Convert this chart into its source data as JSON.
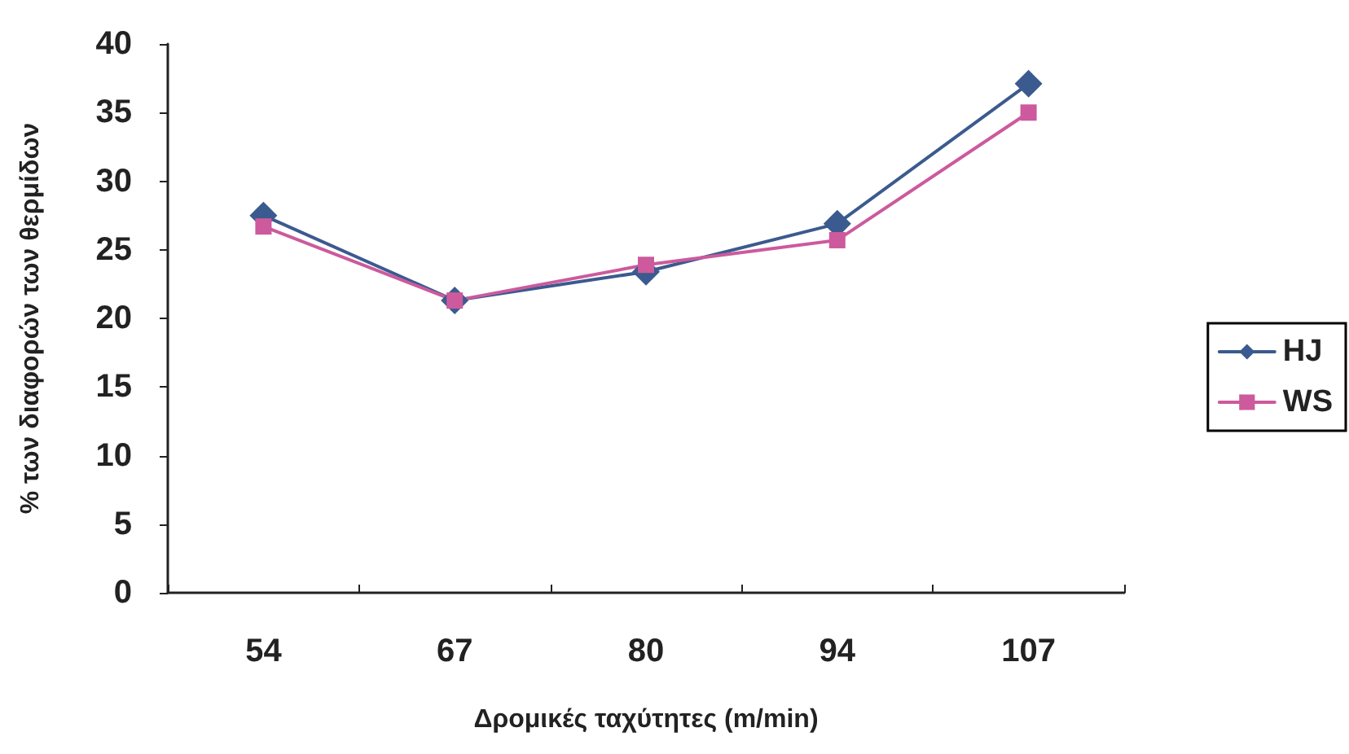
{
  "chart_data": {
    "type": "line",
    "xlabel": "Δρομικές ταχύτητες (m/min)",
    "ylabel": "% των διαφορών των θερμίδων",
    "categories": [
      "54",
      "67",
      "80",
      "94",
      "107"
    ],
    "series": [
      {
        "name": "HJ",
        "color": "#3b5a8f",
        "marker": "diamond",
        "values": [
          27.5,
          21.3,
          23.4,
          26.9,
          37.1
        ]
      },
      {
        "name": "WS",
        "color": "#cc5a9c",
        "marker": "square",
        "values": [
          26.7,
          21.3,
          23.9,
          25.7,
          35.0
        ]
      }
    ],
    "ylim": [
      0,
      40
    ],
    "yticks": [
      0,
      5,
      10,
      15,
      20,
      25,
      30,
      35,
      40
    ],
    "grid": false,
    "legend": "right",
    "line_style": "solid"
  }
}
